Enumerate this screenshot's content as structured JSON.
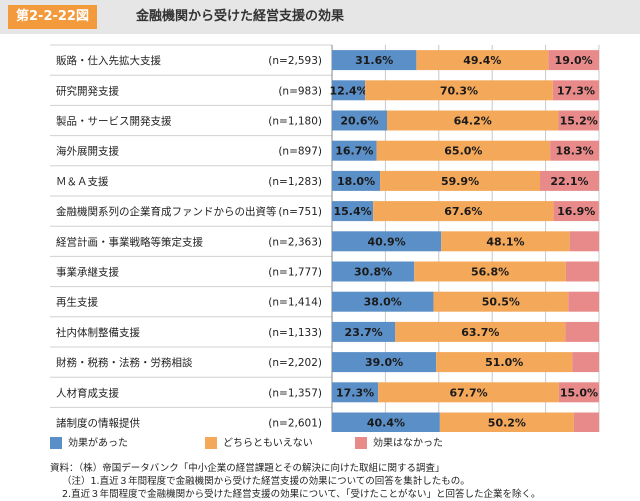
{
  "header": {
    "figure_number": "第2-2-22図",
    "title": "金融機関から受けた経営支援の効果"
  },
  "legend": [
    {
      "label": "効果があった",
      "color": "#5b8fc7"
    },
    {
      "label": "どちらともいえない",
      "color": "#f4a85a"
    },
    {
      "label": "効果はなかった",
      "color": "#e98a8a"
    }
  ],
  "notes": [
    "資料：（株）帝国データバンク「中小企業の経営課題とその解決に向けた取組に関する調査」",
    "（注）1.直近３年間程度で金融機関から受けた経営支援の効果についての回答を集計したもの。",
    "2.直近３年間程度で金融機関から受けた経営支援の効果について、「受けたことがない」と回答した企業を除く。"
  ],
  "chart_data": {
    "type": "bar",
    "orientation": "horizontal",
    "stacked": true,
    "categories": [
      "販路・仕入先拡大支援",
      "研究開発支援",
      "製品・サービス開発支援",
      "海外展開支援",
      "Ｍ＆Ａ支援",
      "金融機関系列の企業育成ファンドからの出資等",
      "経営計画・事業戦略等策定支援",
      "事業承継支援",
      "再生支援",
      "社内体制整備支援",
      "財務・税務・法務・労務相談",
      "人材育成支援",
      "諸制度の情報提供"
    ],
    "sample_sizes": [
      "(n=2,593)",
      "(n=983)",
      "(n=1,180)",
      "(n=897)",
      "(n=1,283)",
      "(n=751)",
      "(n=2,363)",
      "(n=1,777)",
      "(n=1,414)",
      "(n=1,133)",
      "(n=2,202)",
      "(n=1,357)",
      "(n=2,601)"
    ],
    "series": [
      {
        "name": "効果があった",
        "color": "#5b8fc7",
        "values": [
          31.6,
          12.4,
          20.6,
          16.7,
          18.0,
          15.4,
          40.9,
          30.8,
          38.0,
          23.7,
          39.0,
          17.3,
          40.4
        ],
        "labels": [
          "31.6%",
          "12.4%",
          "20.6%",
          "16.7%",
          "18.0%",
          "15.4%",
          "40.9%",
          "30.8%",
          "38.0%",
          "23.7%",
          "39.0%",
          "17.3%",
          "40.4%"
        ]
      },
      {
        "name": "どちらともいえない",
        "color": "#f4a85a",
        "values": [
          49.4,
          70.3,
          64.2,
          65.0,
          59.9,
          67.6,
          48.1,
          56.8,
          50.5,
          63.7,
          51.0,
          67.7,
          50.2
        ],
        "labels": [
          "49.4%",
          "70.3%",
          "64.2%",
          "65.0%",
          "59.9%",
          "67.6%",
          "48.1%",
          "56.8%",
          "50.5%",
          "63.7%",
          "51.0%",
          "67.7%",
          "50.2%"
        ]
      },
      {
        "name": "効果はなかった",
        "color": "#e98a8a",
        "values": [
          19.0,
          17.3,
          15.2,
          18.3,
          22.1,
          16.9,
          11.0,
          12.4,
          11.5,
          12.6,
          10.0,
          15.0,
          9.4
        ],
        "labels": [
          "19.0%",
          "17.3%",
          "15.2%",
          "18.3%",
          "22.1%",
          "16.9%",
          "",
          "",
          "",
          "",
          "",
          "15.0%",
          ""
        ]
      }
    ],
    "xlim": [
      0,
      100
    ],
    "xticks": [
      "0%",
      "20%",
      "40%",
      "60%",
      "80%",
      "100%"
    ],
    "grid": true,
    "legend_position": "bottom"
  }
}
